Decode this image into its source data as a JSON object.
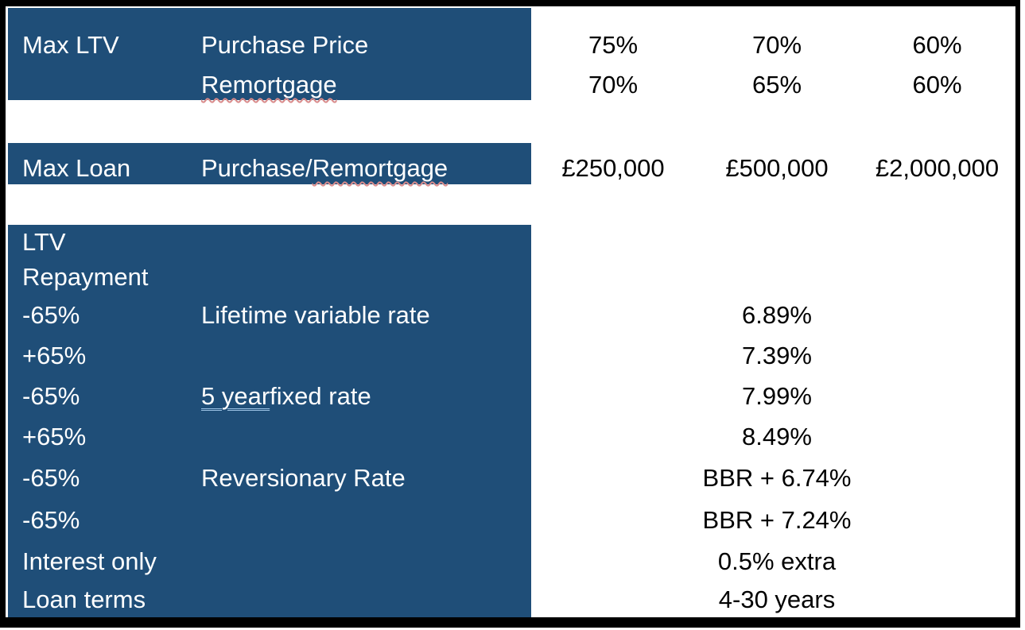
{
  "colors": {
    "band_blue": "#1F4E78",
    "text_on_blue": "#FFFFFF",
    "value_text": "#000000",
    "frame_border": "#000000",
    "spellcheck_underline": "#D98C8C",
    "grammar_underline": "#9DC3E6"
  },
  "max_ltv": {
    "label": "Max LTV",
    "row1": {
      "sub": "Purchase Price",
      "v1": "75%",
      "v2": "70%",
      "v3": "60%"
    },
    "row2": {
      "sub": "Remortgage",
      "v1": "70%",
      "v2": "65%",
      "v3": "60%"
    }
  },
  "max_loan": {
    "label": "Max Loan",
    "sub_prefix": "Purchase/",
    "sub_flagged": "Remortgage",
    "v1": "£250,000",
    "v2": "£500,000",
    "v3": "£2,000,000"
  },
  "rates": {
    "header_line1": "LTV",
    "header_line2": "Repayment",
    "rows": [
      {
        "ltv": "-65%",
        "product": "Lifetime variable rate",
        "rate": "6.89%"
      },
      {
        "ltv": "+65%",
        "product": "",
        "rate": "7.39%"
      },
      {
        "ltv": "-65%",
        "product_flagged": "5 year",
        "product_rest": " fixed rate",
        "rate": "7.99%"
      },
      {
        "ltv": "+65%",
        "product": "",
        "rate": "8.49%"
      },
      {
        "ltv": "-65%",
        "product": "Reversionary Rate",
        "rate": "BBR + 6.74%"
      },
      {
        "ltv": "-65%",
        "product": "",
        "rate": "BBR + 7.24%"
      },
      {
        "ltv": "Interest only",
        "product": "",
        "rate": "0.5% extra"
      },
      {
        "ltv": "Loan terms",
        "product": "",
        "rate": "4-30 years"
      }
    ]
  }
}
